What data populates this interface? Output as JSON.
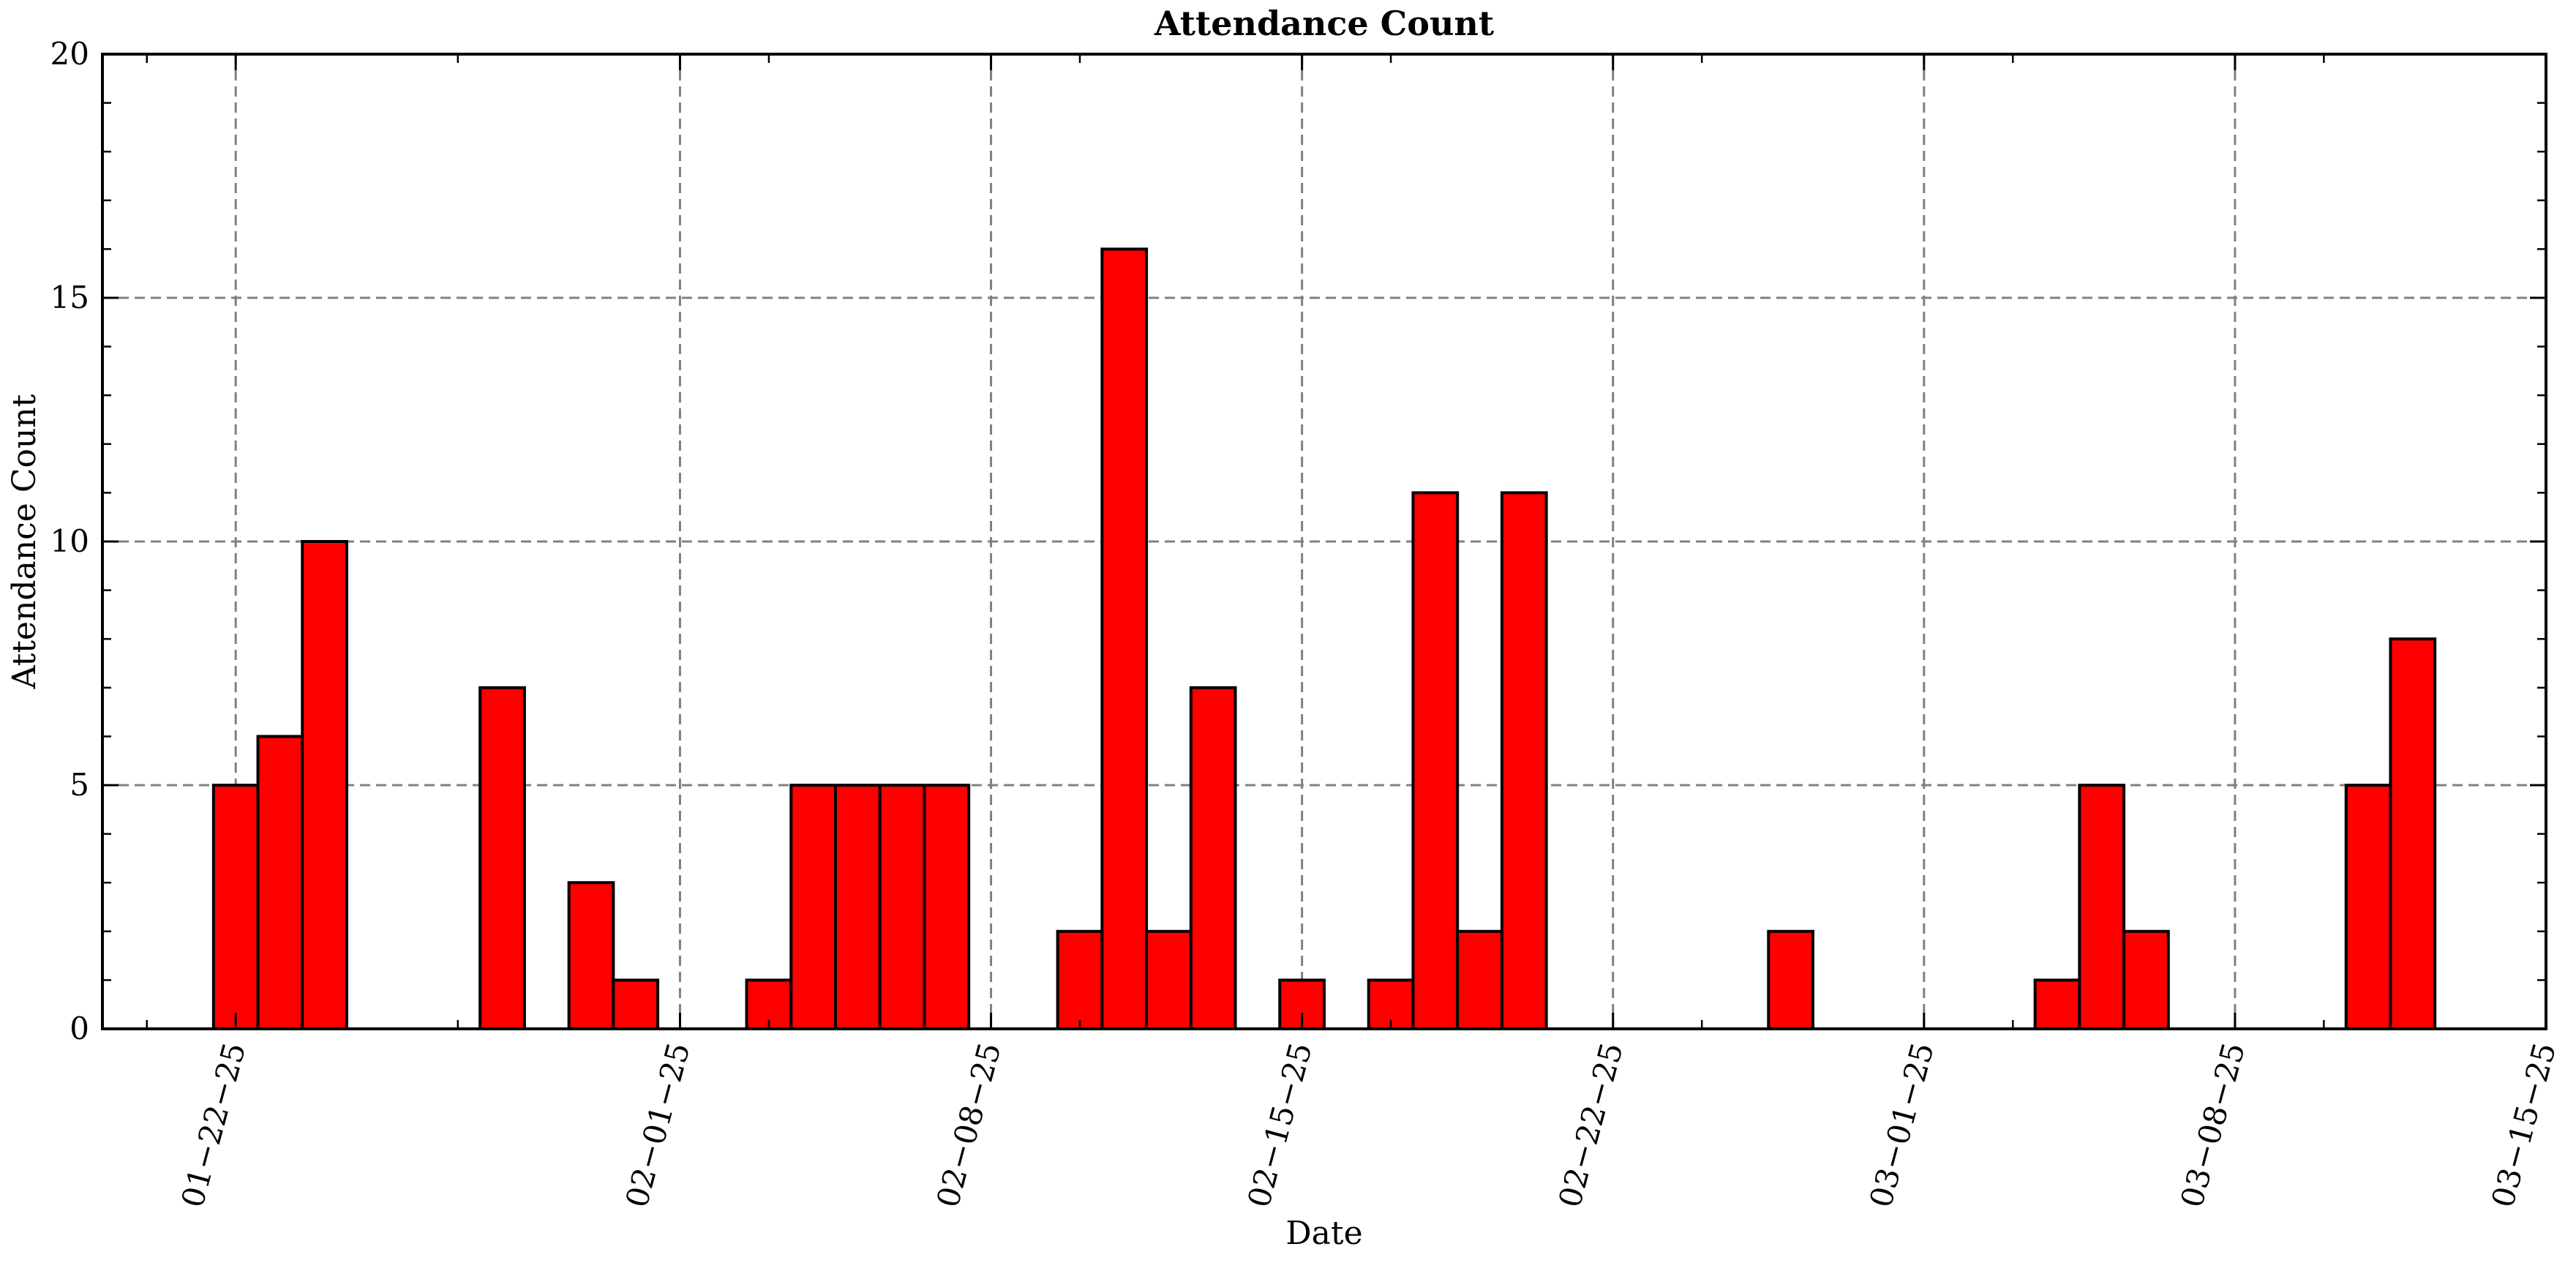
{
  "chart_data": {
    "type": "bar",
    "title": "Attendance Count",
    "xlabel": "Date",
    "ylabel": "Attendance Count",
    "ylim": [
      0,
      20
    ],
    "yticks": [
      0,
      5,
      10,
      15,
      20
    ],
    "xlim": [
      "2025-01-19",
      "2025-03-15"
    ],
    "xticks": [
      {
        "date": "2025-01-22",
        "label": "01−22−25"
      },
      {
        "date": "2025-02-01",
        "label": "02−01−25"
      },
      {
        "date": "2025-02-08",
        "label": "02−08−25"
      },
      {
        "date": "2025-02-15",
        "label": "02−15−25"
      },
      {
        "date": "2025-02-22",
        "label": "02−22−25"
      },
      {
        "date": "2025-03-01",
        "label": "03−01−25"
      },
      {
        "date": "2025-03-08",
        "label": "03−08−25"
      },
      {
        "date": "2025-03-15",
        "label": "03−15−25"
      }
    ],
    "grid": true,
    "bar_color": "#ff0000",
    "edge_color": "#000000",
    "categories": [
      "2025-01-22",
      "2025-01-23",
      "2025-01-24",
      "2025-01-28",
      "2025-01-30",
      "2025-01-31",
      "2025-02-03",
      "2025-02-04",
      "2025-02-05",
      "2025-02-06",
      "2025-02-07",
      "2025-02-10",
      "2025-02-11",
      "2025-02-12",
      "2025-02-13",
      "2025-02-15",
      "2025-02-17",
      "2025-02-18",
      "2025-02-19",
      "2025-02-20",
      "2025-02-26",
      "2025-03-04",
      "2025-03-05",
      "2025-03-06",
      "2025-03-11",
      "2025-03-12"
    ],
    "values": [
      5,
      6,
      10,
      7,
      3,
      1,
      1,
      5,
      5,
      5,
      5,
      2,
      16,
      2,
      7,
      1,
      1,
      11,
      2,
      11,
      2,
      1,
      5,
      2,
      5,
      8
    ]
  }
}
